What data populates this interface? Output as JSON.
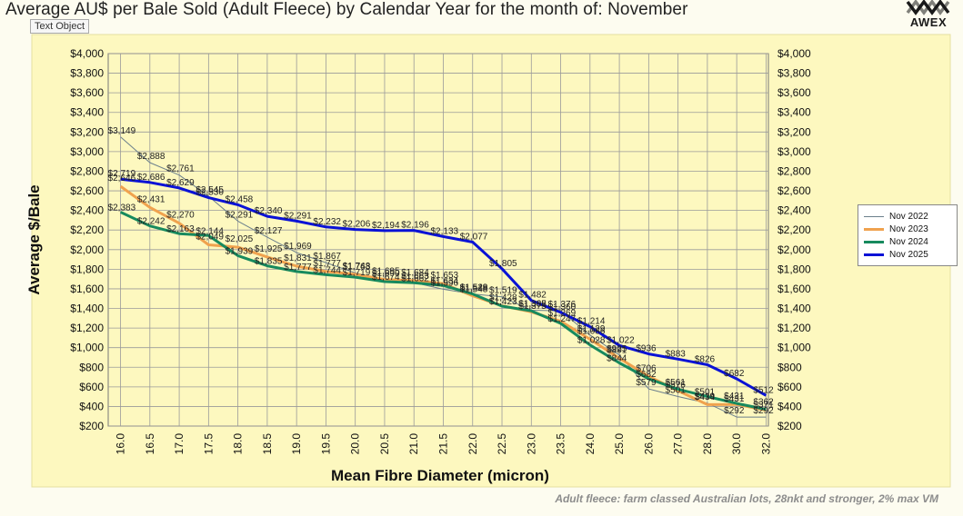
{
  "header": {
    "title": "Average AU$ per Bale Sold (Adult Fleece) by Calendar Year for the month of: November",
    "logo_text": "AWEX",
    "tooltip": "Text Object"
  },
  "footnote": "Adult fleece: farm classed Australian lots, 28nkt and stronger, 2% max VM",
  "colors": {
    "background": "#fdfcf0",
    "plot_background": "#fdf8bf",
    "grid": "#9a9a9a",
    "nov2022": "#6b7f8c",
    "nov2023": "#f0a24e",
    "nov2024": "#178a5e",
    "nov2025": "#0a12d6"
  },
  "chart_data": {
    "type": "line",
    "title": "Average AU$ per Bale Sold (Adult Fleece) by Calendar Year for the month of: November",
    "xlabel": "Mean Fibre Diameter (micron)",
    "ylabel": "Average $/Bale",
    "ylim": [
      200,
      4000
    ],
    "ytick_step": 200,
    "ytick_labels": [
      "$200",
      "$400",
      "$600",
      "$800",
      "$1,000",
      "$1,200",
      "$1,400",
      "$1,600",
      "$1,800",
      "$2,000",
      "$2,200",
      "$2,400",
      "$2,600",
      "$2,800",
      "$3,000",
      "$3,200",
      "$3,400",
      "$3,600",
      "$3,800",
      "$4,000"
    ],
    "categories": [
      "16.0",
      "16.5",
      "17.0",
      "17.5",
      "18.0",
      "18.5",
      "19.0",
      "19.5",
      "20.0",
      "20.5",
      "21.0",
      "21.5",
      "22.0",
      "22.5",
      "23.0",
      "23.5",
      "24.0",
      "25.0",
      "26.0",
      "27.0",
      "28.0",
      "30.0",
      "32.0"
    ],
    "grid": true,
    "legend_position": "right",
    "series": [
      {
        "name": "Nov 2022",
        "color_key": "nov2022",
        "values": [
          3149,
          2888,
          2761,
          2545,
          2291,
          2127,
          1969,
          1867,
          1763,
          1690,
          1663,
          1596,
          1548,
          1519,
          1382,
          1376,
          1129,
          925,
          579,
          501,
          434,
          292,
          292
        ],
        "labels": [
          "$3,149",
          "$2,888",
          "$2,761",
          "$2,545",
          "$2,291",
          "$2,127",
          "$1,969",
          "$1,867",
          "$1,763",
          "$1,690",
          "$1,663",
          "$1,596",
          "$1,548",
          "$1,519",
          "$1,382",
          "$1,376",
          "$1,129",
          "$925",
          "$579",
          "$501",
          "$434",
          "$292",
          "$292"
        ]
      },
      {
        "name": "Nov 2023",
        "color_key": "nov2023",
        "values": [
          2646,
          2431,
          2270,
          2049,
          2025,
          1925,
          1831,
          1777,
          1748,
          1695,
          1684,
          1653,
          1529,
          1428,
          1365,
          1269,
          1086,
          891,
          706,
          561,
          419,
          421,
          362
        ],
        "labels": [
          "$2,646",
          "$2,431",
          "$2,270",
          "$2,049",
          "$2,025",
          "$1,925",
          "$1,831",
          "$1,777",
          "$1,748",
          "$1,695",
          "$1,684",
          "$1,653",
          "$1,529",
          "$1,428",
          "$1,365",
          "$1,269",
          "$1,086",
          "$891",
          "$706",
          "$561",
          "$419",
          "$421",
          "$362"
        ]
      },
      {
        "name": "Nov 2024",
        "color_key": "nov2024",
        "values": [
          2383,
          2242,
          2163,
          2144,
          1939,
          1835,
          1777,
          1744,
          1719,
          1674,
          1662,
          1634,
          1548,
          1423,
          1375,
          1247,
          1028,
          844,
          682,
          576,
          501,
          431,
          371
        ],
        "labels": [
          "$2,383",
          "$2,242",
          "$2,163",
          "$2,144",
          "$1,939",
          "$1,835",
          "$1,777",
          "$1,744",
          "$1,719",
          "$1,674",
          "$1,662",
          "$1,634",
          "$1,548",
          "$1,423",
          "$1,375",
          "$1,247",
          "$1,028",
          "$844",
          "$682",
          "$576",
          "$501",
          "$431",
          "$371"
        ]
      },
      {
        "name": "Nov 2025",
        "color_key": "nov2025",
        "values": [
          2719,
          2686,
          2629,
          2530,
          2458,
          2340,
          2291,
          2232,
          2206,
          2194,
          2196,
          2133,
          2077,
          1805,
          1482,
          1360,
          1214,
          1022,
          936,
          883,
          826,
          682,
          512
        ],
        "labels": [
          "$2,719",
          "$2,686",
          "$2,629",
          "$2,530",
          "$2,458",
          "$2,340",
          "$2,291",
          "$2,232",
          "$2,206",
          "$2,194",
          "$2,196",
          "$2,133",
          "$2,077",
          "$1,805",
          "$1,482",
          "$1,360",
          "$1,214",
          "$1,022",
          "$936",
          "$883",
          "$826",
          "$682",
          "$512"
        ]
      }
    ]
  }
}
